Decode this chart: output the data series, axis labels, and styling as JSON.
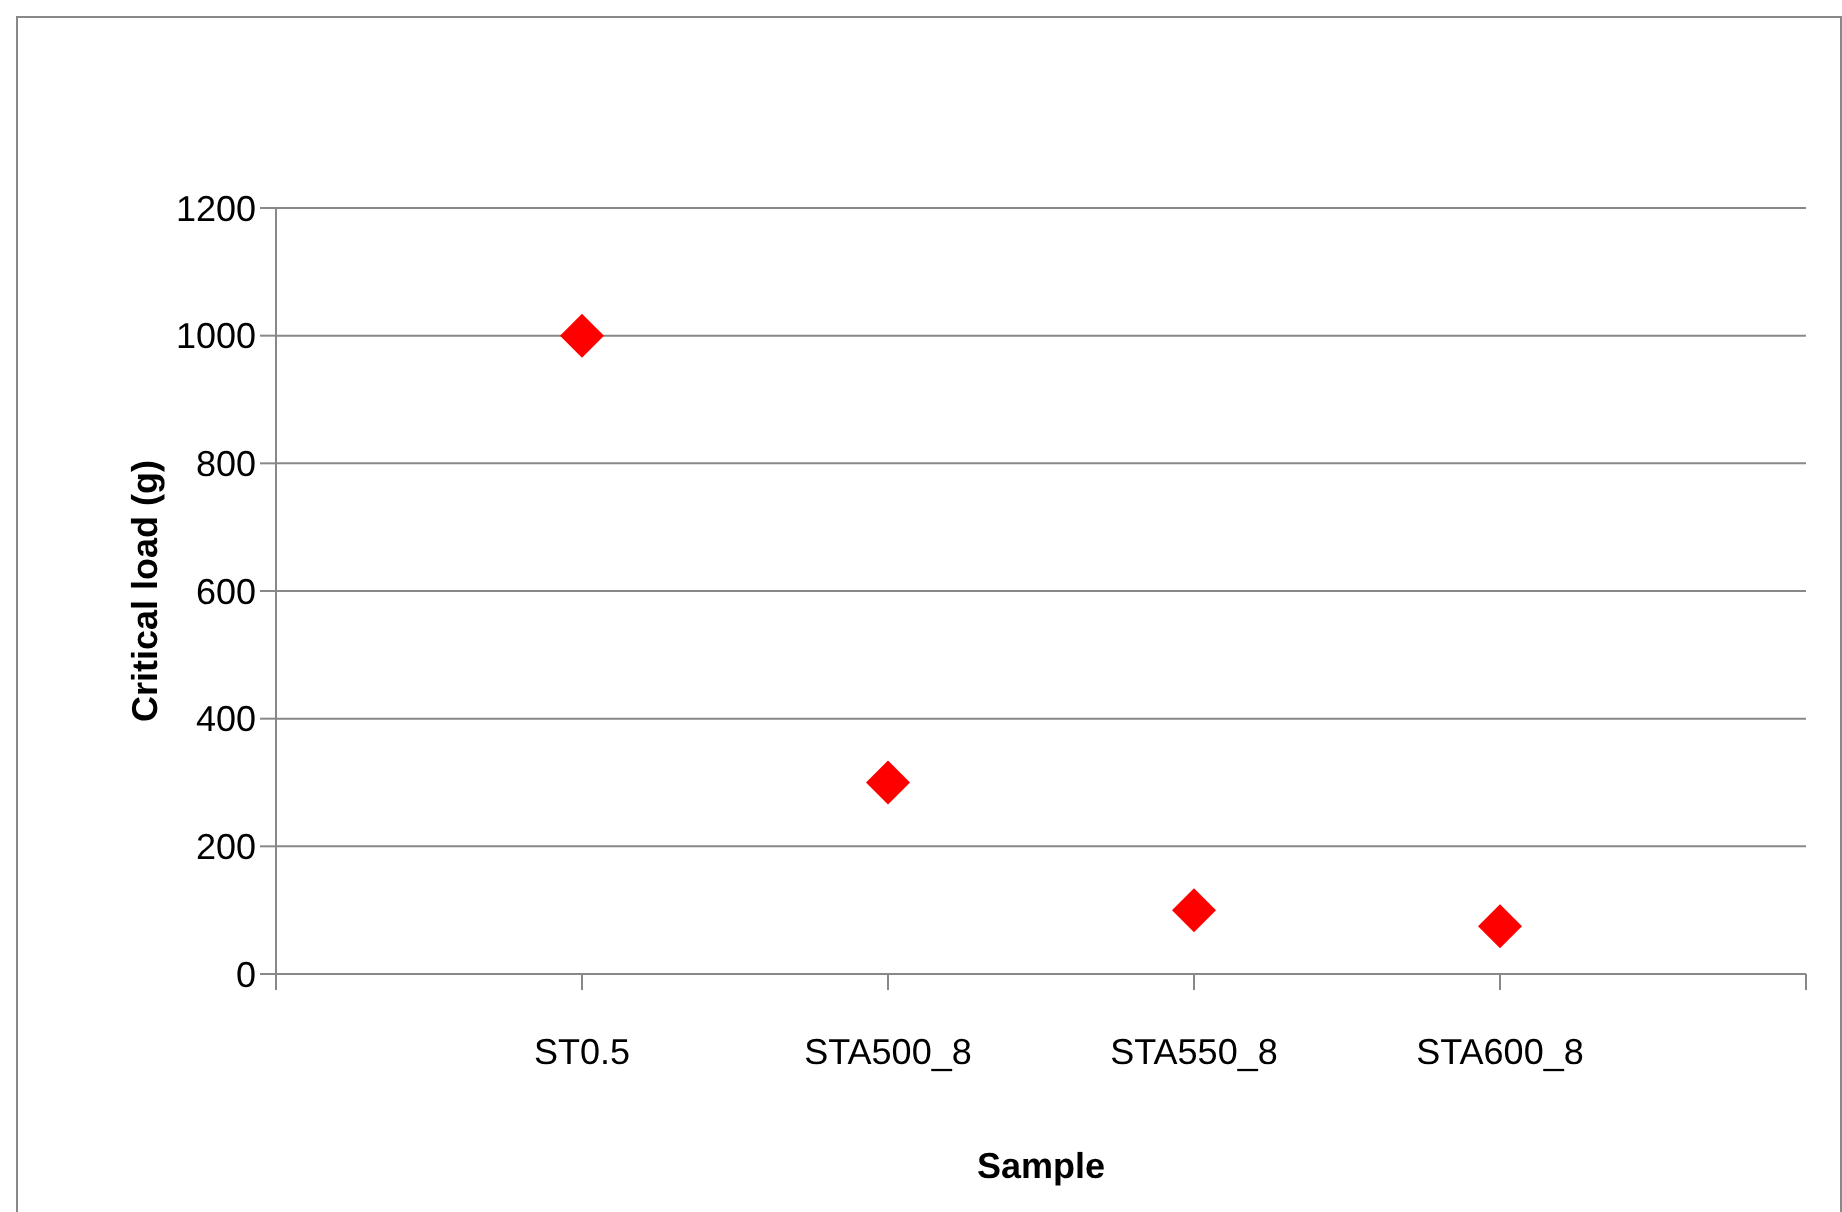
{
  "chart_data": {
    "type": "scatter",
    "xlabel": "Sample",
    "ylabel": "Critical load (g)",
    "categories": [
      "ST0.5",
      "STA500_8",
      "STA550_8",
      "STA600_8"
    ],
    "series": [
      {
        "color": "#ff0000",
        "values": [
          1000,
          300,
          100,
          75
        ]
      }
    ],
    "ylim": [
      0,
      1200
    ],
    "yticks": [
      0,
      200,
      400,
      600,
      800,
      1000,
      1200
    ],
    "grid": "y",
    "legend": false,
    "marker": "diamond"
  }
}
